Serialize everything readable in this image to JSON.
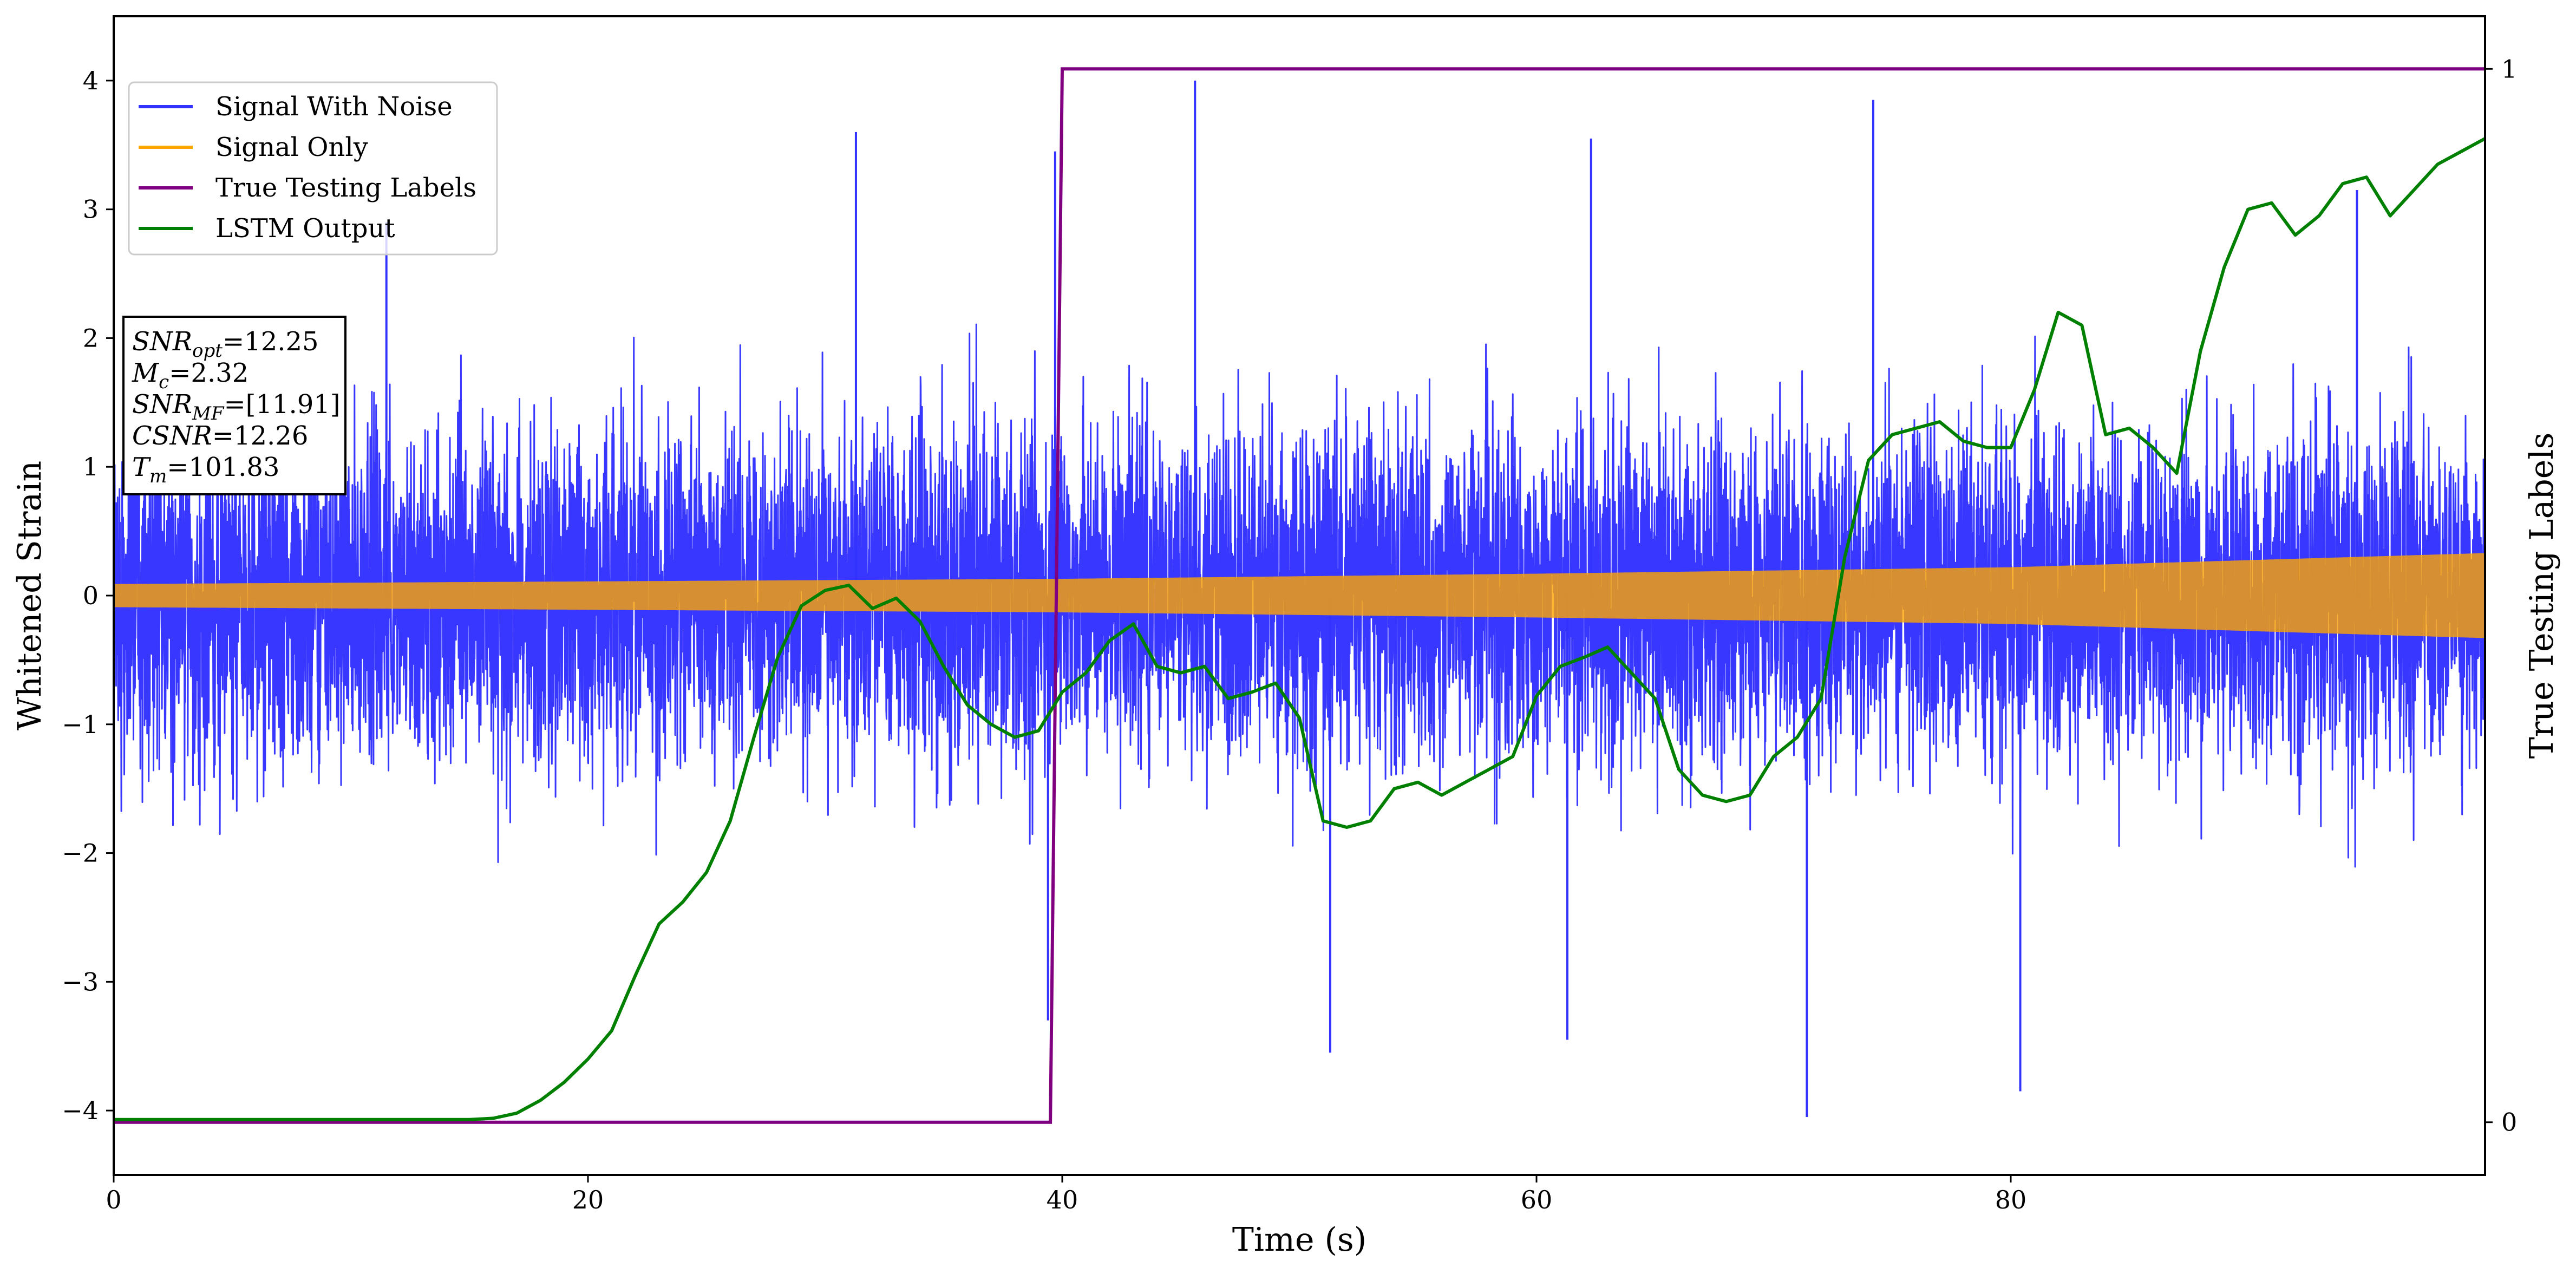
{
  "chart_data": {
    "type": "line",
    "xlabel": "Time (s)",
    "ylabel_left": "Whitened Strain",
    "ylabel_right": "True Testing Labels",
    "xlim": [
      0,
      100
    ],
    "ylim_left": [
      -4.5,
      4.5
    ],
    "ylim_right": [
      -0.05,
      1.05
    ],
    "x_ticks": [
      0,
      20,
      40,
      60,
      80
    ],
    "x_tick_labels": [
      "0",
      "20",
      "40",
      "60",
      "80"
    ],
    "y_left_ticks": [
      -4,
      -3,
      -2,
      -1,
      0,
      1,
      2,
      3,
      4
    ],
    "y_left_tick_labels": [
      "−4",
      "−3",
      "−2",
      "−1",
      "0",
      "1",
      "2",
      "3",
      "4"
    ],
    "y_right_ticks": [
      0,
      1
    ],
    "y_right_tick_labels": [
      "0",
      "1"
    ],
    "legend_placement": "upper-left",
    "series": [
      {
        "name": "Signal With Noise",
        "color": "#3333ff",
        "axis": "left",
        "description_values": "dense noise, typical range about -2 to 2, extremes near -4.05 and 4.0",
        "envelope": {
          "x": [
            0,
            100
          ],
          "typical_max": [
            2.0,
            2.0
          ],
          "typical_min": [
            -2.0,
            -2.0
          ]
        },
        "spikes": [
          {
            "x": 11.5,
            "y": 2.9
          },
          {
            "x": 31.3,
            "y": 3.6
          },
          {
            "x": 39.4,
            "y": -3.3
          },
          {
            "x": 39.7,
            "y": 3.45
          },
          {
            "x": 45.6,
            "y": 4.0
          },
          {
            "x": 51.3,
            "y": -3.55
          },
          {
            "x": 61.3,
            "y": -3.45
          },
          {
            "x": 62.3,
            "y": 3.55
          },
          {
            "x": 71.4,
            "y": -4.05
          },
          {
            "x": 74.2,
            "y": 3.85
          },
          {
            "x": 80.4,
            "y": -3.85
          },
          {
            "x": 94.6,
            "y": 3.15
          }
        ]
      },
      {
        "name": "Signal Only",
        "color": "#ffa500",
        "axis": "left",
        "amplitude": {
          "x": [
            0,
            20,
            40,
            60,
            80,
            100
          ],
          "y": [
            0.09,
            0.11,
            0.13,
            0.17,
            0.22,
            0.33
          ]
        }
      },
      {
        "name": "True Testing Labels",
        "color": "#800080",
        "axis": "right",
        "x": [
          0,
          39.5,
          40,
          100
        ],
        "y": [
          0,
          0,
          1,
          1
        ]
      },
      {
        "name": "LSTM Output",
        "color": "#008000",
        "axis": "left",
        "x": [
          0,
          5,
          10,
          15,
          16,
          17,
          18,
          19,
          20,
          21,
          22,
          23,
          24,
          25,
          26,
          27,
          28,
          29,
          30,
          31,
          32,
          33,
          34,
          35,
          36,
          37,
          38,
          39,
          40,
          41,
          42,
          43,
          44,
          45,
          46,
          47,
          48,
          49,
          50,
          51,
          52,
          53,
          54,
          55,
          56,
          57,
          58,
          59,
          60,
          61,
          62,
          63,
          64,
          65,
          66,
          67,
          68,
          69,
          70,
          71,
          72,
          73,
          74,
          75,
          76,
          77,
          78,
          79,
          80,
          81,
          82,
          83,
          84,
          85,
          86,
          87,
          88,
          89,
          90,
          91,
          92,
          93,
          94,
          95,
          96,
          97,
          98,
          99,
          100
        ],
        "y": [
          -4.07,
          -4.07,
          -4.07,
          -4.07,
          -4.06,
          -4.02,
          -3.92,
          -3.78,
          -3.6,
          -3.38,
          -2.95,
          -2.55,
          -2.38,
          -2.15,
          -1.75,
          -1.1,
          -0.48,
          -0.08,
          0.04,
          0.08,
          -0.1,
          -0.02,
          -0.2,
          -0.55,
          -0.85,
          -1.0,
          -1.1,
          -1.05,
          -0.75,
          -0.6,
          -0.35,
          -0.22,
          -0.55,
          -0.6,
          -0.55,
          -0.8,
          -0.75,
          -0.68,
          -0.95,
          -1.75,
          -1.8,
          -1.75,
          -1.5,
          -1.45,
          -1.55,
          -1.45,
          -1.35,
          -1.25,
          -0.78,
          -0.55,
          -0.48,
          -0.4,
          -0.6,
          -0.8,
          -1.35,
          -1.55,
          -1.6,
          -1.55,
          -1.25,
          -1.1,
          -0.8,
          0.3,
          1.05,
          1.25,
          1.3,
          1.35,
          1.2,
          1.15,
          1.15,
          1.6,
          2.2,
          2.1,
          1.25,
          1.3,
          1.15,
          0.95,
          1.9,
          2.55,
          3.0,
          3.05,
          2.8,
          2.95,
          3.2,
          3.25,
          2.95,
          3.15,
          3.35,
          3.45,
          3.55
        ]
      }
    ],
    "annotation_lines": [
      {
        "base": "SNR",
        "sub": "opt",
        "rest": "=12.25"
      },
      {
        "base": "M",
        "sub": "c",
        "rest": "=2.32"
      },
      {
        "base": "SNR",
        "sub": "MF",
        "rest": "=[11.91]"
      },
      {
        "base": "CSNR",
        "sub": "",
        "rest": "=12.26"
      },
      {
        "base": "T",
        "sub": "m",
        "rest": "=101.83"
      }
    ]
  }
}
